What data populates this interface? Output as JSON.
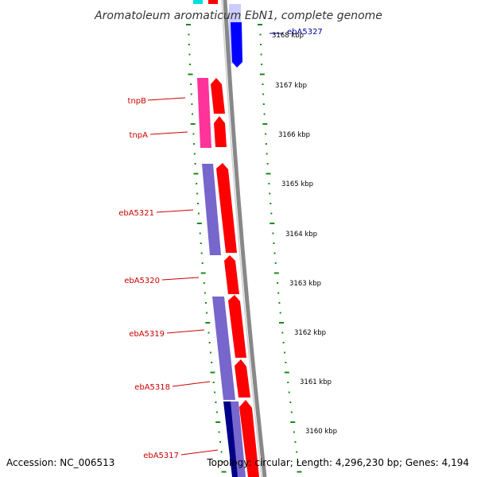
{
  "title": "Aromatoleum aromaticum EbN1, complete genome",
  "footer": {
    "accession": "Accession: NC_006513",
    "topology": "Topology: circular; Length: 4,296,230 bp; Genes: 4,194"
  },
  "colors": {
    "forward_cds": "#ff0000",
    "reverse_cds": "#0000ff",
    "forward_feature": "#7766cc",
    "reverse_feature": "#ccccff",
    "insertion_element": "#ff3399",
    "dark_feature": "#000088",
    "cyan_feature": "#00dddd",
    "label_red": "#cc0000",
    "label_blue": "#0000aa",
    "dots": "#1a8a1a",
    "backbone": "#888888"
  },
  "genes": [
    {
      "label": "ebA5327",
      "color": "blue"
    },
    {
      "label": "tnpB",
      "color": "red"
    },
    {
      "label": "tnpA",
      "color": "red"
    },
    {
      "label": "ebA5321",
      "color": "red"
    },
    {
      "label": "ebA5320",
      "color": "red"
    },
    {
      "label": "ebA5319",
      "color": "red"
    },
    {
      "label": "ebA5318",
      "color": "red"
    },
    {
      "label": "ebA5317",
      "color": "red"
    }
  ],
  "ticks": [
    {
      "label": "3168 kbp"
    },
    {
      "label": "3167 kbp"
    },
    {
      "label": "3166 kbp"
    },
    {
      "label": "3165 kbp"
    },
    {
      "label": "3164 kbp"
    },
    {
      "label": "3163 kbp"
    },
    {
      "label": "3162 kbp"
    },
    {
      "label": "3161 kbp"
    },
    {
      "label": "3160 kbp"
    }
  ]
}
